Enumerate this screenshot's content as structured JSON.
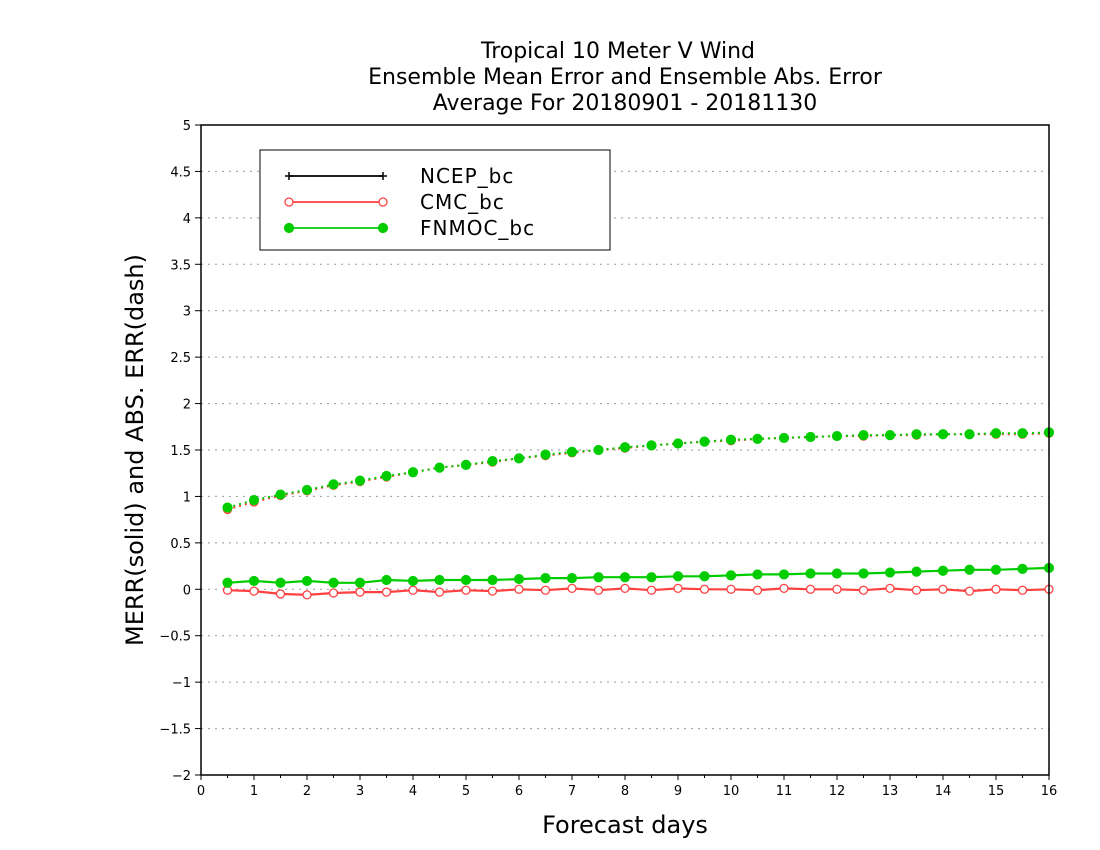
{
  "chart_data": {
    "type": "line",
    "title": [
      "Tropical 10 Meter V Wind",
      "Ensemble Mean Error and Ensemble Abs. Error",
      "Average For 20180901 - 20181130"
    ],
    "xlabel": "Forecast days",
    "ylabel": "MERR(solid) and ABS. ERR(dash)",
    "xlim": [
      0,
      16
    ],
    "ylim": [
      -2,
      5
    ],
    "xticks": [
      0,
      1,
      2,
      3,
      4,
      5,
      6,
      7,
      8,
      9,
      10,
      11,
      12,
      13,
      14,
      15,
      16
    ],
    "yticks": [
      -2,
      -1.5,
      -1,
      -0.5,
      0,
      0.5,
      1,
      1.5,
      2,
      2.5,
      3,
      3.5,
      4,
      4.5,
      5
    ],
    "ytick_labels": [
      "−2",
      "−1.5",
      "−1",
      "−0.5",
      "0",
      "0.5",
      "1",
      "1.5",
      "2",
      "2.5",
      "3",
      "3.5",
      "4",
      "4.5",
      "5"
    ],
    "grid": "horizontal dotted",
    "legend_position": "top-left",
    "x": [
      0.5,
      1,
      1.5,
      2,
      2.5,
      3,
      3.5,
      4,
      4.5,
      5,
      5.5,
      6,
      6.5,
      7,
      7.5,
      8,
      8.5,
      9,
      9.5,
      10,
      10.5,
      11,
      11.5,
      12,
      12.5,
      13,
      13.5,
      14,
      14.5,
      15,
      15.5,
      16
    ],
    "series": [
      {
        "name": "NCEP_bc",
        "color": "#000000",
        "marker": "plus",
        "mean_error": [],
        "abs_error": []
      },
      {
        "name": "CMC_bc",
        "color": "#ff4040",
        "marker": "open-circle",
        "mean_error": [
          -0.01,
          -0.02,
          -0.05,
          -0.06,
          -0.04,
          -0.03,
          -0.03,
          -0.01,
          -0.03,
          -0.01,
          -0.02,
          0.0,
          -0.01,
          0.01,
          -0.01,
          0.01,
          -0.01,
          0.01,
          0.0,
          0.0,
          -0.01,
          0.01,
          0.0,
          0.0,
          -0.01,
          0.01,
          -0.01,
          0.0,
          -0.02,
          0.0,
          -0.01,
          0.0
        ],
        "abs_error": [
          0.86,
          0.94,
          1.01,
          1.06,
          1.12,
          1.16,
          1.21,
          1.26,
          1.31,
          1.34,
          1.37,
          1.41,
          1.44,
          1.47,
          1.5,
          1.52,
          1.55,
          1.57,
          1.59,
          1.6,
          1.62,
          1.63,
          1.64,
          1.65,
          1.65,
          1.66,
          1.66,
          1.67,
          1.67,
          1.67,
          1.67,
          1.68
        ]
      },
      {
        "name": "FNMOC_bc",
        "color": "#00cc00",
        "marker": "filled-circle",
        "mean_error": [
          0.07,
          0.09,
          0.07,
          0.09,
          0.07,
          0.07,
          0.1,
          0.09,
          0.1,
          0.1,
          0.1,
          0.11,
          0.12,
          0.12,
          0.13,
          0.13,
          0.13,
          0.14,
          0.14,
          0.15,
          0.16,
          0.16,
          0.17,
          0.17,
          0.17,
          0.18,
          0.19,
          0.2,
          0.21,
          0.21,
          0.22,
          0.23
        ],
        "abs_error": [
          0.88,
          0.96,
          1.02,
          1.07,
          1.13,
          1.17,
          1.22,
          1.26,
          1.31,
          1.34,
          1.38,
          1.41,
          1.45,
          1.48,
          1.5,
          1.53,
          1.55,
          1.57,
          1.59,
          1.61,
          1.62,
          1.63,
          1.64,
          1.65,
          1.66,
          1.66,
          1.67,
          1.67,
          1.67,
          1.68,
          1.68,
          1.69
        ]
      }
    ]
  }
}
